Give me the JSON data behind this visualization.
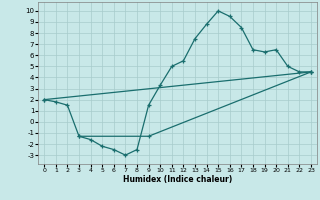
{
  "bg_color": "#c8e8e8",
  "grid_color": "#a8cccc",
  "line_color": "#1a6e6e",
  "xlabel": "Humidex (Indice chaleur)",
  "xlim": [
    -0.5,
    23.5
  ],
  "ylim": [
    -3.8,
    10.8
  ],
  "xticks": [
    0,
    1,
    2,
    3,
    4,
    5,
    6,
    7,
    8,
    9,
    10,
    11,
    12,
    13,
    14,
    15,
    16,
    17,
    18,
    19,
    20,
    21,
    22,
    23
  ],
  "yticks": [
    -3,
    -2,
    -1,
    0,
    1,
    2,
    3,
    4,
    5,
    6,
    7,
    8,
    9,
    10
  ],
  "curve_x": [
    0,
    1,
    2,
    3,
    4,
    5,
    6,
    7,
    8,
    9,
    10,
    11,
    12,
    13,
    14,
    15,
    16,
    17,
    18,
    19,
    20,
    21,
    22,
    23
  ],
  "curve_y": [
    2.0,
    1.8,
    1.5,
    -1.3,
    -1.6,
    -2.2,
    -2.5,
    -3.0,
    -2.5,
    1.5,
    3.3,
    5.0,
    5.5,
    7.5,
    8.8,
    10.0,
    9.5,
    8.5,
    6.5,
    6.3,
    6.5,
    5.0,
    4.5,
    4.5
  ],
  "line1_x": [
    0,
    23
  ],
  "line1_y": [
    2.0,
    4.5
  ],
  "line2_x": [
    3,
    9,
    23
  ],
  "line2_y": [
    -1.3,
    -1.3,
    4.5
  ]
}
